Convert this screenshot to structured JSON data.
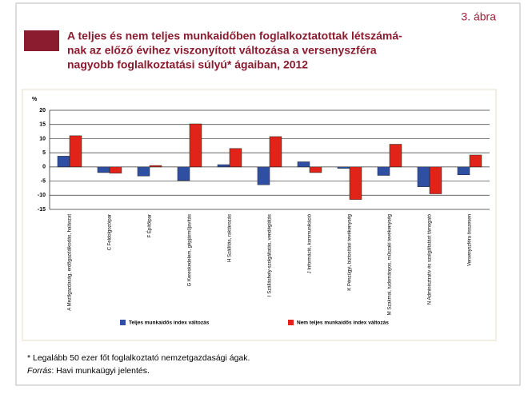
{
  "figure_label": "3. ábra",
  "footnote": "* Legalább 50 ezer főt foglalkoztató nemzetgazdasági ágak.",
  "source_label": "Forrás",
  "source_text": ": Havi munkaügyi jelentés.",
  "chart_data": {
    "type": "bar",
    "title": [
      "A teljes és nem teljes munkaidőben foglalkoztatottak létszámá-",
      "nak az előző évihez viszonyított változása a versenyszféra",
      "nagyobb foglalkoztatási súlyú* ágaiban, 2012"
    ],
    "y_label": "%",
    "categories": [
      "A Mezőgazdaság, erdőgazdálkodás, halászat",
      "C Feldolgozóipar",
      "F Építőipar",
      "G Kereskedelem, gépjárműjavítás",
      "H Szállítás, raktározás",
      "I Szálláshely-szolgáltatás, vendéglátás",
      "J Információ, kommunikáció",
      "K Pénzügyi, biztosítási tevékenység",
      "M Szakmai, tudományos, műszaki tevékenység",
      "N Adminisztratív és szolgáltatást támogató",
      "Versenyszféra összesen"
    ],
    "series": [
      {
        "name": "Teljes munkaidős index változás",
        "color": "#2f4fa3",
        "values": [
          3.8,
          -2,
          -3.2,
          -4.8,
          0.8,
          -6.3,
          1.8,
          -0.5,
          -3,
          -7,
          -2.8
        ]
      },
      {
        "name": "Nem teljes munkaidős index változás",
        "color": "#e2231a",
        "values": [
          11,
          -2.2,
          0.5,
          15.2,
          6.5,
          10.7,
          -2,
          -11.5,
          8,
          -9.5,
          4.2
        ]
      }
    ],
    "ylim": [
      -15,
      20
    ],
    "yticks": [
      -15,
      -10,
      -5,
      0,
      5,
      10,
      15,
      20
    ],
    "grid": true
  }
}
